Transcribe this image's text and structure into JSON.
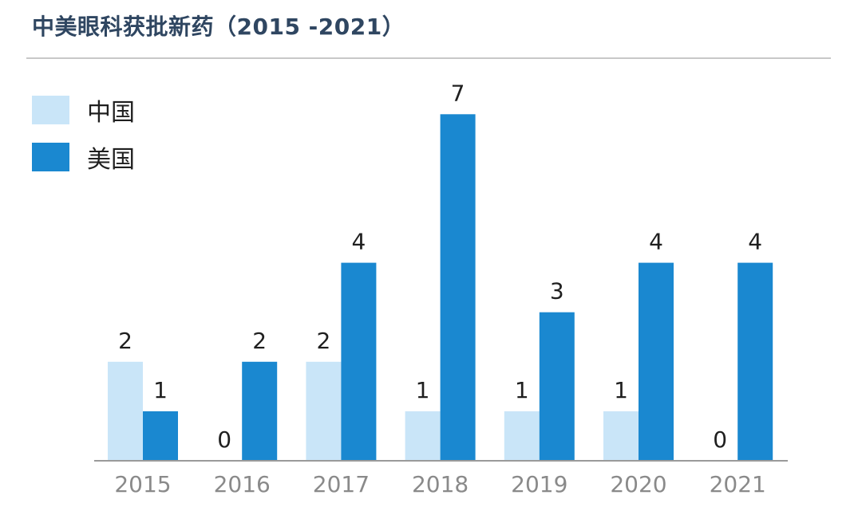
{
  "title": "中美眼科获批新药（2015 -2021）",
  "chart_data": {
    "type": "bar",
    "title": "中美眼科获批新药（2015 -2021）",
    "categories": [
      "2015",
      "2016",
      "2017",
      "2018",
      "2019",
      "2020",
      "2021"
    ],
    "series": [
      {
        "name": "中国",
        "color": "#c9e5f8",
        "values": [
          2,
          0,
          2,
          1,
          1,
          1,
          0
        ]
      },
      {
        "name": "美国",
        "color": "#1a88d0",
        "values": [
          1,
          2,
          4,
          7,
          3,
          4,
          4
        ]
      }
    ],
    "ylim": [
      0,
      7
    ],
    "data_labels": true,
    "grid": false,
    "legend_position": "top-left"
  }
}
